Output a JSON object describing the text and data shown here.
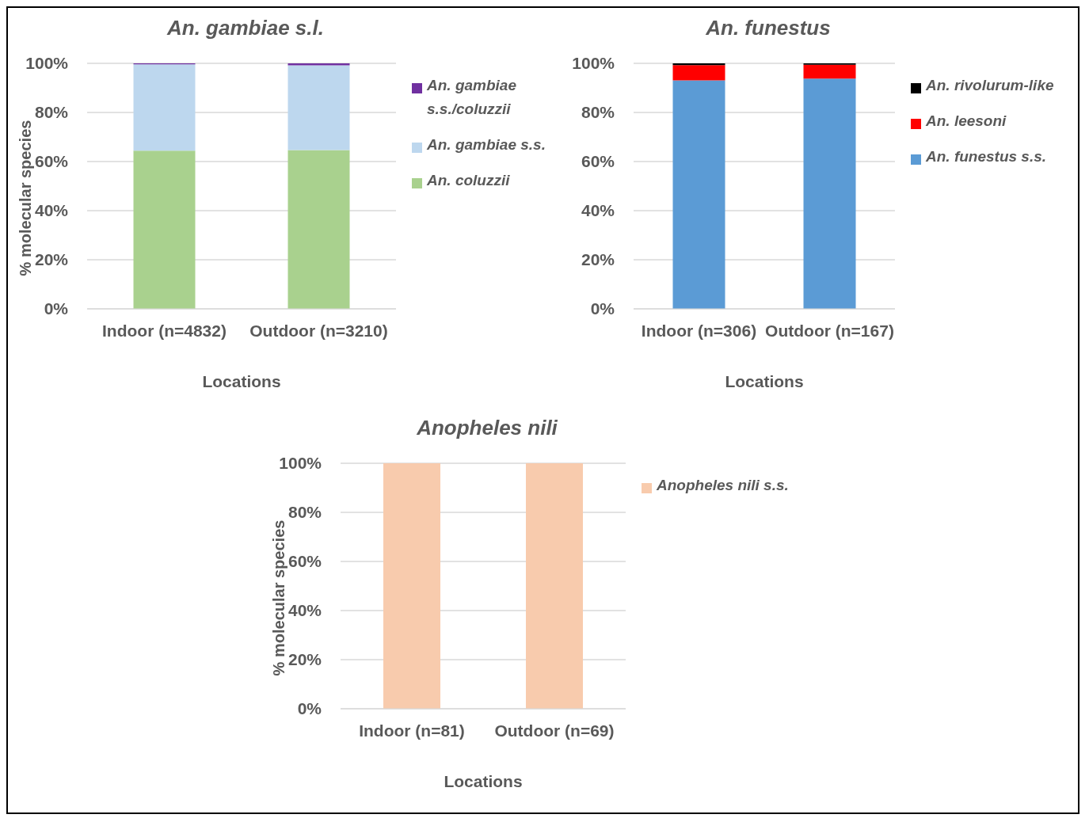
{
  "chart_data": [
    {
      "type": "bar",
      "title": "An. gambiae s.l.",
      "xlabel": "Locations",
      "ylabel": "% molecular species",
      "categories": [
        "Indoor (n=4832)",
        "Outdoor (n=3210)"
      ],
      "stacked": true,
      "ylim": [
        0,
        100
      ],
      "yticks": [
        {
          "value": 0,
          "label": "0%"
        },
        {
          "value": 20,
          "label": "20%"
        },
        {
          "value": 40,
          "label": "40%"
        },
        {
          "value": 60,
          "label": "60%"
        },
        {
          "value": 80,
          "label": "80%"
        },
        {
          "value": 100,
          "label": "100%"
        }
      ],
      "grid": "y",
      "legend": "right",
      "tick_labels": true,
      "series": [
        {
          "name": "An. coluzzii",
          "color": "#a9d18e",
          "values": [
            64.4,
            64.7
          ]
        },
        {
          "name": "An. gambiae s.s.",
          "color": "#bdd7ee",
          "values": [
            35.2,
            34.5
          ]
        },
        {
          "name": "An. gambiae s.s./coluzzii",
          "color": "#7030a0",
          "values": [
            0.4,
            0.8
          ]
        }
      ]
    },
    {
      "type": "bar",
      "title": "An. funestus",
      "xlabel": "Locations",
      "categories": [
        "Indoor (n=306)",
        "Outdoor (n=167)"
      ],
      "stacked": true,
      "ylim": [
        0,
        100
      ],
      "yticks": [
        {
          "value": 0,
          "label": "0%"
        },
        {
          "value": 20,
          "label": "20%"
        },
        {
          "value": 40,
          "label": "40%"
        },
        {
          "value": 60,
          "label": "60%"
        },
        {
          "value": 80,
          "label": "80%"
        },
        {
          "value": 100,
          "label": "100%"
        }
      ],
      "grid": "y",
      "legend": "right",
      "series": [
        {
          "name": "An. funestus s.s.",
          "color": "#5b9bd5",
          "values": [
            93.1,
            93.8
          ]
        },
        {
          "name": "An. leesoni",
          "color": "#ff0000",
          "values": [
            6.2,
            5.6
          ]
        },
        {
          "name": "An. rivolurum-like",
          "color": "#000000",
          "values": [
            0.7,
            0.6
          ]
        }
      ]
    },
    {
      "type": "bar",
      "title": "Anopheles nili",
      "xlabel": "Locations",
      "ylabel": "% molecular species",
      "categories": [
        "Indoor (n=81)",
        "Outdoor (n=69)"
      ],
      "stacked": true,
      "ylim": [
        0,
        100
      ],
      "yticks": [
        {
          "value": 0,
          "label": "0%"
        },
        {
          "value": 20,
          "label": "20%"
        },
        {
          "value": 40,
          "label": "40%"
        },
        {
          "value": 60,
          "label": "60%"
        },
        {
          "value": 80,
          "label": "80%"
        },
        {
          "value": 100,
          "label": "100%"
        }
      ],
      "grid": "y",
      "legend": "right",
      "series": [
        {
          "name": "Anopheles nili s.s.",
          "color": "#f8cbad",
          "values": [
            100,
            100
          ]
        }
      ]
    }
  ]
}
